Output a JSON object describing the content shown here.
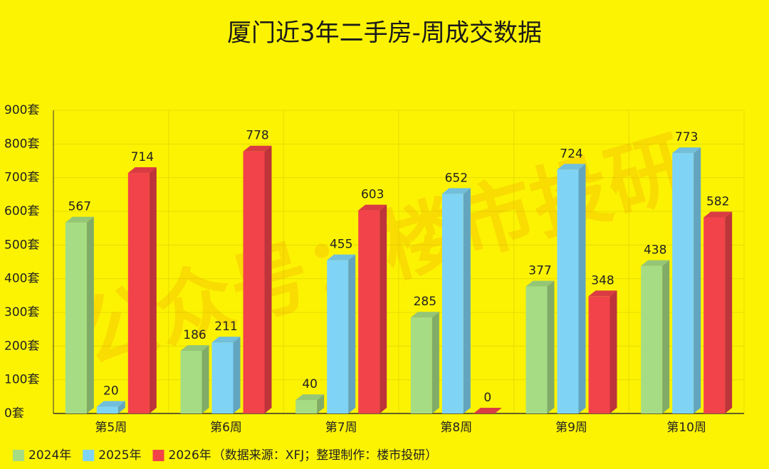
{
  "chart_data": {
    "type": "bar3d",
    "title": "厦门近3年二手房-周成交数据",
    "watermark": "公众号：楼市投研",
    "categories": [
      "第5周",
      "第6周",
      "第7周",
      "第8周",
      "第9周",
      "第10周"
    ],
    "series": [
      {
        "name": "2024年",
        "color": "#a6dc84",
        "values": [
          567,
          186,
          40,
          285,
          377,
          438
        ]
      },
      {
        "name": "2025年",
        "color": "#7fd3f5",
        "values": [
          20,
          211,
          455,
          652,
          724,
          773
        ]
      },
      {
        "name": "2026年",
        "color": "#f2434a",
        "values": [
          714,
          778,
          603,
          0,
          348,
          582
        ]
      }
    ],
    "legend_note": "（数据来源：XFJ；整理制作：楼市投研）",
    "ylim": [
      0,
      900
    ],
    "yticks": [
      {
        "value": 0,
        "label": "0套"
      },
      {
        "value": 100,
        "label": "100套"
      },
      {
        "value": 200,
        "label": "200套"
      },
      {
        "value": 300,
        "label": "300套"
      },
      {
        "value": 400,
        "label": "400套"
      },
      {
        "value": 500,
        "label": "500套"
      },
      {
        "value": 600,
        "label": "600套"
      },
      {
        "value": 700,
        "label": "700套"
      },
      {
        "value": 800,
        "label": "800套"
      },
      {
        "value": 900,
        "label": "900套"
      }
    ],
    "grid": true
  }
}
